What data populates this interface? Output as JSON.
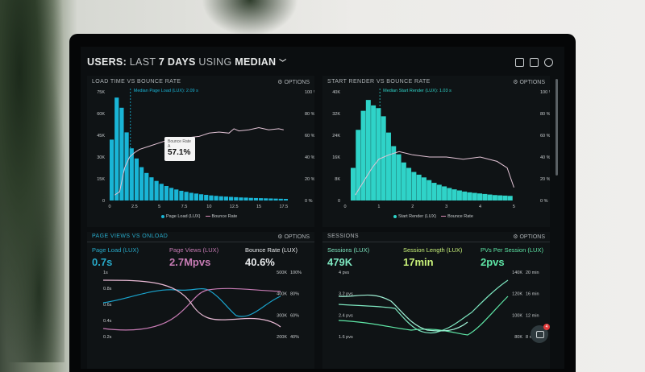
{
  "header": {
    "prefix": "USERS:",
    "part1": " LAST ",
    "part2": "7 DAYS",
    "part3": " USING ",
    "part4": "MEDIAN",
    "chevron": "﹀"
  },
  "header_icons": [
    "monitor-icon",
    "image-icon",
    "help-icon"
  ],
  "colors": {
    "cyan": "#19b5d6",
    "pink": "#d98cb6",
    "green": "#7ee8c1",
    "purple": "#c77bb4"
  },
  "panels": {
    "load_time": {
      "title": "LOAD TIME VS BOUNCE RATE",
      "options": "OPTIONS",
      "annotation": "Median Page Load (LUX): 2.09 s",
      "tooltip_label": "Bounce Rate",
      "tooltip_sub": "A",
      "tooltip_value": "57.1%",
      "left_ticks": [
        "75K",
        "60K",
        "45K",
        "30K",
        "15K",
        "0"
      ],
      "right_ticks": [
        "100 %",
        "80 %",
        "60 %",
        "40 %",
        "20 %",
        "0 %"
      ],
      "x_ticks": [
        "0",
        "2.5",
        "5",
        "7.5",
        "10",
        "12.5",
        "15",
        "17.5"
      ],
      "legend_a": "Page Load (LUX)",
      "legend_b": "Bounce Rate"
    },
    "start_render": {
      "title": "START RENDER VS BOUNCE RATE",
      "options": "OPTIONS",
      "annotation": "Median Start Render (LUX): 1.03 s",
      "left_ticks": [
        "40K",
        "32K",
        "24K",
        "16K",
        "8K",
        "0"
      ],
      "right_ticks": [
        "100 %",
        "80 %",
        "60 %",
        "40 %",
        "20 %",
        "0 %"
      ],
      "x_ticks": [
        "0",
        "1",
        "2",
        "3",
        "4",
        "5"
      ],
      "legend_a": "Start Render (LUX)",
      "legend_b": "Bounce Rate"
    },
    "page_views": {
      "title": "PAGE VIEWS VS ONLOAD",
      "options": "OPTIONS",
      "metrics": [
        {
          "label": "Page Load (LUX)",
          "value": "0.7s"
        },
        {
          "label": "Page Views (LUX)",
          "value": "2.7Mpvs"
        },
        {
          "label": "Bounce Rate (LUX)",
          "value": "40.6%"
        }
      ],
      "left_ticks": [
        "1s",
        "0.8s",
        "0.6s",
        "0.4s",
        "0.2s"
      ],
      "right_ticks_a": [
        "500K",
        "400K",
        "300K",
        "200K"
      ],
      "right_ticks_b": [
        "100%",
        "80%",
        "60%",
        "40%"
      ]
    },
    "sessions": {
      "title": "SESSIONS",
      "options": "OPTIONS",
      "metrics": [
        {
          "label": "Sessions (LUX)",
          "value": "479K"
        },
        {
          "label": "Session Length (LUX)",
          "value": "17min"
        },
        {
          "label": "PVs Per Session (LUX)",
          "value": "2pvs"
        }
      ],
      "left_ticks": [
        "4 pvs",
        "3.2 pvs",
        "2.4 pvs",
        "1.6 pvs"
      ],
      "right_ticks_a": [
        "140K",
        "120K",
        "100K",
        "80K"
      ],
      "right_ticks_b": [
        "20 min",
        "16 min",
        "12 min",
        "8 min"
      ]
    }
  },
  "chat_badge": "4",
  "chart_data": [
    {
      "type": "bar",
      "title": "LOAD TIME VS BOUNCE RATE",
      "xlabel": "",
      "ylabel": "",
      "ylim": [
        0,
        75000
      ],
      "y2lim": [
        0,
        100
      ],
      "x": [
        0.25,
        0.75,
        1.25,
        1.75,
        2.25,
        2.75,
        3.25,
        3.75,
        4.25,
        4.75,
        5.25,
        5.75,
        6.25,
        6.75,
        7.25,
        7.75,
        8.25,
        8.75,
        9.25,
        9.75,
        10.25,
        10.75,
        11.25,
        11.75,
        12.25,
        12.75,
        13.25,
        13.75,
        14.25,
        14.75,
        15.25,
        15.75,
        16.25,
        16.75,
        17.25,
        17.75
      ],
      "series": [
        {
          "name": "Page Load (LUX)",
          "type": "bar",
          "values": [
            42000,
            71000,
            64000,
            47000,
            36000,
            29000,
            23000,
            19000,
            16000,
            13500,
            11500,
            10000,
            8700,
            7600,
            6700,
            6000,
            5300,
            4800,
            4300,
            3900,
            3500,
            3200,
            2900,
            2700,
            2500,
            2300,
            2100,
            2000,
            1800,
            1700,
            1600,
            1500,
            1400,
            1300,
            1200,
            1100
          ]
        },
        {
          "name": "Bounce Rate",
          "type": "line",
          "x": [
            0.5,
            1,
            1.5,
            2,
            2.5,
            3,
            4,
            5,
            6,
            7,
            8,
            9,
            10,
            11,
            12,
            12.5,
            13,
            14,
            15,
            16,
            17,
            17.5
          ],
          "values": [
            5,
            8,
            30,
            40,
            44,
            47,
            50,
            53,
            56,
            57,
            58,
            59,
            62,
            63,
            62,
            66,
            64,
            65,
            67,
            65,
            66,
            65
          ]
        }
      ]
    },
    {
      "type": "bar",
      "title": "START RENDER VS BOUNCE RATE",
      "xlabel": "",
      "ylabel": "",
      "ylim": [
        0,
        40000
      ],
      "y2lim": [
        0,
        100
      ],
      "x": [
        0.25,
        0.4,
        0.55,
        0.7,
        0.85,
        1.0,
        1.15,
        1.3,
        1.45,
        1.6,
        1.75,
        1.9,
        2.05,
        2.2,
        2.35,
        2.5,
        2.65,
        2.8,
        2.95,
        3.1,
        3.25,
        3.4,
        3.55,
        3.7,
        3.85,
        4.0,
        4.15,
        4.3,
        4.45,
        4.6,
        4.75,
        4.9
      ],
      "series": [
        {
          "name": "Start Render (LUX)",
          "type": "bar",
          "values": [
            12000,
            26000,
            33000,
            37000,
            35000,
            34000,
            31000,
            25000,
            20000,
            17000,
            14000,
            12000,
            10500,
            9500,
            8500,
            7500,
            6500,
            5800,
            5200,
            4600,
            4100,
            3700,
            3300,
            3000,
            2800,
            2600,
            2400,
            2200,
            2000,
            1900,
            1800,
            1700
          ]
        },
        {
          "name": "Bounce Rate",
          "type": "line",
          "x": [
            0.3,
            0.5,
            0.8,
            1.0,
            1.3,
            1.6,
            2.0,
            2.5,
            3.0,
            3.5,
            4.0,
            4.5,
            4.8,
            5.0
          ],
          "values": [
            5,
            15,
            30,
            38,
            42,
            45,
            42,
            40,
            40,
            38,
            40,
            36,
            30,
            12
          ]
        }
      ]
    }
  ]
}
